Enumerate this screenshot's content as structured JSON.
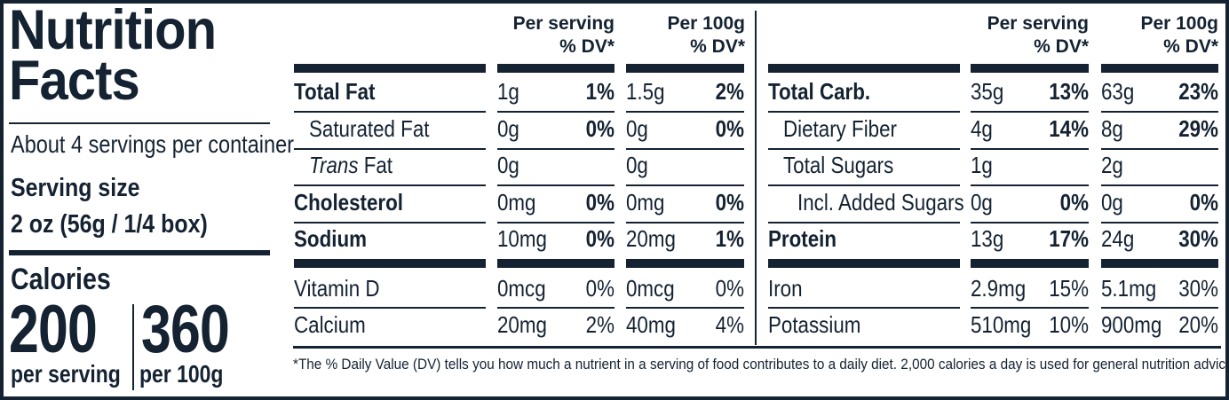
{
  "title": [
    "Nutrition",
    "Facts"
  ],
  "servings_per_container": "About 4 servings per container",
  "serving_size_label": "Serving size",
  "serving_size_value": "2 oz (56g / 1/4 box)",
  "calories": {
    "label": "Calories",
    "per_serving_value": "200",
    "per_serving_label": "per serving",
    "per_100g_value": "360",
    "per_100g_label": "per 100g"
  },
  "column_headers": {
    "per_serving": [
      "Per serving",
      "% DV*"
    ],
    "per_100g": [
      "Per 100g",
      "% DV*"
    ]
  },
  "left_table": {
    "rows": [
      {
        "name": "Total Fat",
        "style": "bold",
        "s_amt": "1g",
        "s_dv": "1%",
        "h_amt": "1.5g",
        "h_dv": "2%"
      },
      {
        "name": "Saturated Fat",
        "style": "indent",
        "s_amt": "0g",
        "s_dv": "0%",
        "h_amt": "0g",
        "h_dv": "0%"
      },
      {
        "name_italic": "Trans",
        "name_rest": " Fat",
        "style": "indent",
        "s_amt": "0g",
        "s_dv": "",
        "h_amt": "0g",
        "h_dv": ""
      },
      {
        "name": "Cholesterol",
        "style": "bold",
        "s_amt": "0mg",
        "s_dv": "0%",
        "h_amt": "0mg",
        "h_dv": "0%"
      },
      {
        "name": "Sodium",
        "style": "bold",
        "s_amt": "10mg",
        "s_dv": "0%",
        "h_amt": "20mg",
        "h_dv": "1%"
      }
    ],
    "vitamin_rows": [
      {
        "name": "Vitamin D",
        "s_amt": "0mcg",
        "s_dv": "0%",
        "h_amt": "0mcg",
        "h_dv": "0%"
      },
      {
        "name": "Calcium",
        "s_amt": "20mg",
        "s_dv": "2%",
        "h_amt": "40mg",
        "h_dv": "4%"
      }
    ]
  },
  "right_table": {
    "rows": [
      {
        "name": "Total Carb.",
        "style": "bold",
        "s_amt": "35g",
        "s_dv": "13%",
        "h_amt": "63g",
        "h_dv": "23%"
      },
      {
        "name": "Dietary Fiber",
        "style": "indent",
        "s_amt": "4g",
        "s_dv": "14%",
        "h_amt": "8g",
        "h_dv": "29%"
      },
      {
        "name": "Total Sugars",
        "style": "indent",
        "s_amt": "1g",
        "s_dv": "",
        "h_amt": "2g",
        "h_dv": ""
      },
      {
        "name": "Incl. Added Sugars",
        "style": "indent2",
        "s_amt": "0g",
        "s_dv": "0%",
        "h_amt": "0g",
        "h_dv": "0%"
      },
      {
        "name": "Protein",
        "style": "bold",
        "s_amt": "13g",
        "s_dv": "17%",
        "h_amt": "24g",
        "h_dv": "30%"
      }
    ],
    "vitamin_rows": [
      {
        "name": "Iron",
        "s_amt": "2.9mg",
        "s_dv": "15%",
        "h_amt": "5.1mg",
        "h_dv": "30%"
      },
      {
        "name": "Potassium",
        "s_amt": "510mg",
        "s_dv": "10%",
        "h_amt": "900mg",
        "h_dv": "20%"
      }
    ]
  },
  "footnote": "*The % Daily Value (DV) tells you how much a nutrient in a serving of food contributes to a daily diet. 2,000 calories a day is used for general nutrition advice."
}
